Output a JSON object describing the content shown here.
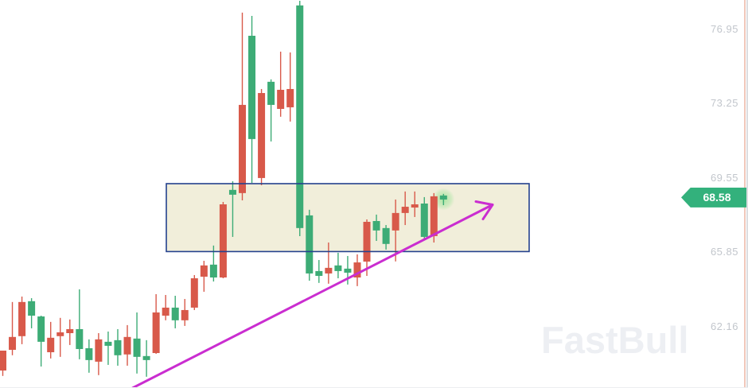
{
  "watermark": "FastBull",
  "price_axis": {
    "labels": [
      "76.95",
      "73.25",
      "69.55",
      "65.85",
      "62.16"
    ],
    "tick_prices": [
      76.95,
      73.25,
      69.55,
      65.85,
      62.16
    ],
    "current_price_label": "68.58",
    "current_price": 68.58
  },
  "colors": {
    "candle_red": "#d8594a",
    "candle_green": "#3dac76",
    "badge_green": "#33b17c",
    "box_fill": "#f1eeda",
    "box_border": "#24418e",
    "arrow": "#ca2dd0",
    "axis_line": "#f1c7ba",
    "axis_label": "#c2c6cc",
    "watermark_color": "#edeff3",
    "glow": "#78e07c"
  },
  "chart_data": {
    "type": "candlestick",
    "title": "",
    "ylabel": "price",
    "ylim": [
      59.1,
      78.41
    ],
    "grid": false,
    "legend": "none",
    "y_ticks": [
      76.95,
      73.25,
      69.55,
      65.85,
      62.16
    ],
    "layout": {
      "x_start": 3.5,
      "x_step": 12.04,
      "body_width": 9,
      "wick_width": 1.4
    },
    "candles": [
      {
        "o": 59.97,
        "h": 60.96,
        "l": 59.7,
        "c": 60.96,
        "col": "r"
      },
      {
        "o": 61.0,
        "h": 63.38,
        "l": 60.73,
        "c": 61.64,
        "col": "r"
      },
      {
        "o": 61.68,
        "h": 63.65,
        "l": 61.28,
        "c": 63.38,
        "col": "r"
      },
      {
        "o": 63.42,
        "h": 63.57,
        "l": 62.07,
        "c": 62.7,
        "col": "g"
      },
      {
        "o": 62.66,
        "h": 62.7,
        "l": 60.17,
        "c": 61.4,
        "col": "g"
      },
      {
        "o": 60.88,
        "h": 62.39,
        "l": 60.57,
        "c": 61.6,
        "col": "r"
      },
      {
        "o": 61.68,
        "h": 62.59,
        "l": 60.65,
        "c": 61.87,
        "col": "r"
      },
      {
        "o": 61.83,
        "h": 62.51,
        "l": 61.24,
        "c": 62.03,
        "col": "r"
      },
      {
        "o": 62.03,
        "h": 64.01,
        "l": 60.53,
        "c": 61.04,
        "col": "g"
      },
      {
        "o": 61.08,
        "h": 61.52,
        "l": 59.86,
        "c": 60.49,
        "col": "g"
      },
      {
        "o": 60.41,
        "h": 61.83,
        "l": 59.74,
        "c": 61.52,
        "col": "r"
      },
      {
        "o": 61.4,
        "h": 61.91,
        "l": 60.25,
        "c": 61.2,
        "col": "g"
      },
      {
        "o": 61.48,
        "h": 62.03,
        "l": 60.21,
        "c": 60.73,
        "col": "g"
      },
      {
        "o": 60.77,
        "h": 62.23,
        "l": 60.21,
        "c": 61.64,
        "col": "r"
      },
      {
        "o": 61.56,
        "h": 62.86,
        "l": 59.82,
        "c": 60.65,
        "col": "g"
      },
      {
        "o": 60.69,
        "h": 61.48,
        "l": 59.66,
        "c": 60.49,
        "col": "g"
      },
      {
        "o": 60.84,
        "h": 63.77,
        "l": 60.8,
        "c": 62.86,
        "col": "r"
      },
      {
        "o": 62.7,
        "h": 63.73,
        "l": 62.47,
        "c": 63.1,
        "col": "r"
      },
      {
        "o": 63.1,
        "h": 63.69,
        "l": 62.07,
        "c": 62.47,
        "col": "g"
      },
      {
        "o": 62.47,
        "h": 63.53,
        "l": 62.19,
        "c": 62.98,
        "col": "r"
      },
      {
        "o": 63.1,
        "h": 64.72,
        "l": 62.98,
        "c": 64.56,
        "col": "r"
      },
      {
        "o": 64.64,
        "h": 65.43,
        "l": 63.89,
        "c": 65.2,
        "col": "r"
      },
      {
        "o": 65.24,
        "h": 66.19,
        "l": 64.4,
        "c": 64.6,
        "col": "g"
      },
      {
        "o": 64.6,
        "h": 68.36,
        "l": 64.56,
        "c": 68.24,
        "col": "r"
      },
      {
        "o": 68.96,
        "h": 69.39,
        "l": 66.62,
        "c": 68.72,
        "col": "g"
      },
      {
        "o": 68.8,
        "h": 77.78,
        "l": 68.44,
        "c": 73.19,
        "col": "r"
      },
      {
        "o": 76.63,
        "h": 77.62,
        "l": 69.31,
        "c": 71.49,
        "col": "g"
      },
      {
        "o": 69.55,
        "h": 73.98,
        "l": 69.19,
        "c": 73.78,
        "col": "r"
      },
      {
        "o": 74.34,
        "h": 74.46,
        "l": 71.37,
        "c": 73.19,
        "col": "g"
      },
      {
        "o": 72.99,
        "h": 75.84,
        "l": 72.6,
        "c": 73.94,
        "col": "r"
      },
      {
        "o": 73.07,
        "h": 75.8,
        "l": 72.36,
        "c": 73.98,
        "col": "r"
      },
      {
        "o": 78.14,
        "h": 78.37,
        "l": 66.66,
        "c": 67.06,
        "col": "g"
      },
      {
        "o": 67.69,
        "h": 67.97,
        "l": 64.44,
        "c": 64.8,
        "col": "g"
      },
      {
        "o": 64.92,
        "h": 65.47,
        "l": 64.33,
        "c": 64.68,
        "col": "g"
      },
      {
        "o": 64.8,
        "h": 66.34,
        "l": 64.29,
        "c": 65.08,
        "col": "r"
      },
      {
        "o": 65.2,
        "h": 65.83,
        "l": 64.56,
        "c": 64.92,
        "col": "g"
      },
      {
        "o": 65.04,
        "h": 65.67,
        "l": 64.25,
        "c": 64.84,
        "col": "g"
      },
      {
        "o": 64.6,
        "h": 65.75,
        "l": 64.17,
        "c": 65.35,
        "col": "r"
      },
      {
        "o": 65.39,
        "h": 67.49,
        "l": 64.68,
        "c": 67.37,
        "col": "r"
      },
      {
        "o": 67.41,
        "h": 67.73,
        "l": 66.42,
        "c": 66.94,
        "col": "g"
      },
      {
        "o": 67.06,
        "h": 67.21,
        "l": 65.99,
        "c": 66.27,
        "col": "g"
      },
      {
        "o": 66.94,
        "h": 68.48,
        "l": 65.4,
        "c": 67.81,
        "col": "r"
      },
      {
        "o": 67.81,
        "h": 68.88,
        "l": 67.21,
        "c": 68.12,
        "col": "r"
      },
      {
        "o": 68.08,
        "h": 68.88,
        "l": 67.61,
        "c": 68.24,
        "col": "r"
      },
      {
        "o": 68.28,
        "h": 68.6,
        "l": 66.46,
        "c": 66.62,
        "col": "g"
      },
      {
        "o": 66.66,
        "h": 68.8,
        "l": 66.34,
        "c": 68.64,
        "col": "r"
      },
      {
        "o": 68.68,
        "h": 68.76,
        "l": 68.2,
        "c": 68.48,
        "col": "g"
      }
    ],
    "annotations": {
      "box": {
        "type": "rect",
        "index_from": 17.07,
        "index_to": 54.94,
        "price_top": 69.27,
        "price_bottom": 65.89
      },
      "trendline": {
        "type": "arrow",
        "from": {
          "index": 13.54,
          "price": 59.1
        },
        "to": {
          "index": 51.12,
          "price": 68.22
        },
        "width": 3,
        "barb1": {
          "dx": -21,
          "dy": -4
        },
        "barb2": {
          "dx": -12,
          "dy": 18
        }
      },
      "glow": {
        "index": 46,
        "price": 68.5,
        "radius": 14
      }
    }
  }
}
